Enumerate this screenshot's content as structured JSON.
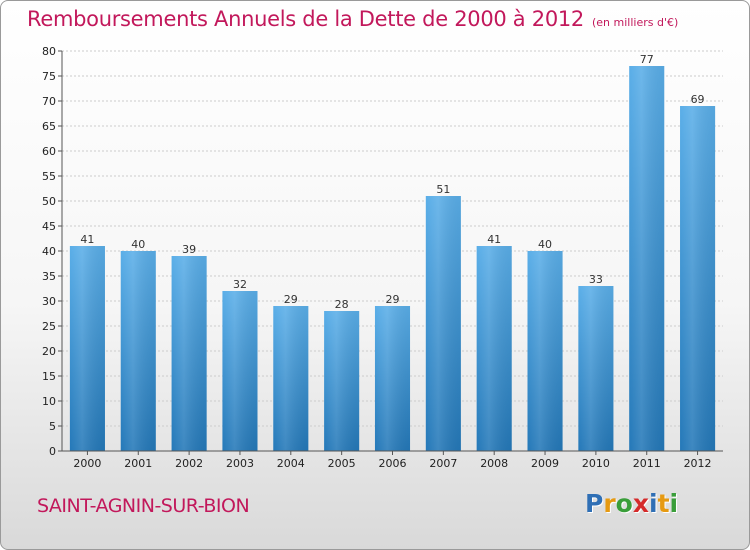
{
  "header": {
    "title": "Remboursements Annuels de la Dette de 2000 à 2012",
    "subtitle": "(en milliers d'€)"
  },
  "footer": {
    "commune": "SAINT-AGNIN-SUR-BION",
    "logo_letters": [
      "P",
      "r",
      "o",
      "x",
      "i",
      "t",
      "i"
    ],
    "logo_colors": [
      "#2f6fb5",
      "#e69a12",
      "#3a9e3a",
      "#d52b2b",
      "#2f6fb5",
      "#e69a12",
      "#3a9e3a"
    ]
  },
  "colors": {
    "bar_top": "#5aaee8",
    "bar_bottom": "#2478b8",
    "grid": "#cccccc",
    "title": "#c2185b"
  },
  "chart_data": {
    "type": "bar",
    "title": "Remboursements Annuels de la Dette de 2000 à 2012",
    "subtitle": "(en milliers d'€)",
    "xlabel": "",
    "ylabel": "",
    "categories": [
      "2000",
      "2001",
      "2002",
      "2003",
      "2004",
      "2005",
      "2006",
      "2007",
      "2008",
      "2009",
      "2010",
      "2011",
      "2012"
    ],
    "values": [
      41,
      40,
      39,
      32,
      29,
      28,
      29,
      51,
      41,
      40,
      33,
      77,
      69
    ],
    "ylim": [
      0,
      80
    ],
    "yticks": [
      0,
      5,
      10,
      15,
      20,
      25,
      30,
      35,
      40,
      45,
      50,
      55,
      60,
      65,
      70,
      75,
      80
    ],
    "grid": true
  }
}
